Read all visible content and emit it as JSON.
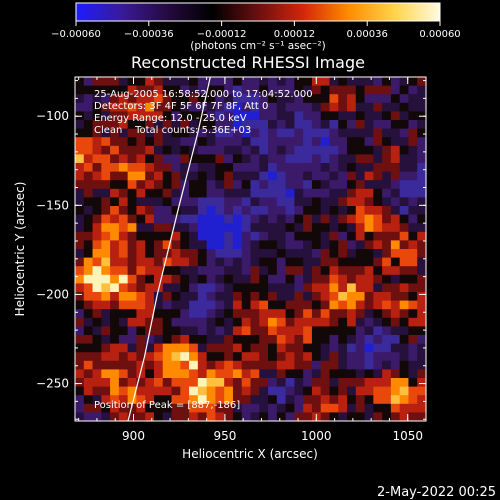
{
  "chart_data": {
    "type": "heatmap",
    "title": "Reconstructed RHESSI Image",
    "xlabel": "Heliocentric X (arcsec)",
    "ylabel": "Heliocentric Y (arcsec)",
    "xlim": [
      868,
      1060
    ],
    "ylim": [
      -271,
      -78
    ],
    "x_ticks": [
      900,
      950,
      1000,
      1050
    ],
    "x_tick_labels": [
      "900",
      "950",
      "1000",
      "1050"
    ],
    "y_ticks": [
      -100,
      -150,
      -200,
      -250
    ],
    "y_tick_labels": [
      "−100",
      "−150",
      "−200",
      "−250"
    ],
    "colorbar": {
      "range": [
        -0.0006,
        0.0006
      ],
      "ticks": [
        -0.0006,
        -0.00036,
        -0.00012,
        0.00012,
        0.00036,
        0.0006
      ],
      "tick_labels": [
        "−0.00060",
        "−0.00036",
        "−0.00012",
        "0.00012",
        "0.00036",
        "0.00060"
      ],
      "unit_label": "(photons cm⁻² s⁻¹ asec⁻²)",
      "colors": [
        "#1d1dff",
        "#3a1a9a",
        "#250a40",
        "#000000",
        "#6a0f0f",
        "#d4260a",
        "#ff8c00",
        "#ffd34a",
        "#fffbe0"
      ]
    },
    "annotations": [
      "25-Aug-2005 16:58:52.000 to 17:04:52.000",
      "Detectors: 3F 4F 5F 6F 7F 8F, Att 0",
      "Energy Range: 12.0 - 25.0 keV",
      "Clean    Total counts: 5.36E+03"
    ],
    "peak_label": "Position of Peak = [887,-186]",
    "peak_position": [
      887,
      -186
    ],
    "limb_curve": [
      [
        942,
        -78
      ],
      [
        935,
        -110
      ],
      [
        925,
        -150
      ],
      [
        913,
        -200
      ],
      [
        906,
        -235
      ],
      [
        897,
        -271
      ]
    ],
    "hot_spots": [
      {
        "x": 881,
        "y": -190,
        "v": 1.0
      },
      {
        "x": 900,
        "y": -200,
        "v": 0.55
      },
      {
        "x": 890,
        "y": -163,
        "v": 0.7
      },
      {
        "x": 873,
        "y": -122,
        "v": 0.75
      },
      {
        "x": 900,
        "y": -130,
        "v": 0.6
      },
      {
        "x": 905,
        "y": -92,
        "v": 0.6
      },
      {
        "x": 922,
        "y": -178,
        "v": 0.5
      },
      {
        "x": 925,
        "y": -236,
        "v": 0.8
      },
      {
        "x": 938,
        "y": -258,
        "v": 0.85
      },
      {
        "x": 900,
        "y": -255,
        "v": 0.6
      },
      {
        "x": 882,
        "y": -240,
        "v": 0.55
      },
      {
        "x": 958,
        "y": -245,
        "v": 0.5
      },
      {
        "x": 965,
        "y": -212,
        "v": 0.55
      },
      {
        "x": 990,
        "y": -220,
        "v": 0.55
      },
      {
        "x": 1015,
        "y": -200,
        "v": 0.8
      },
      {
        "x": 1045,
        "y": -208,
        "v": 0.6
      },
      {
        "x": 1028,
        "y": -156,
        "v": 0.65
      },
      {
        "x": 1048,
        "y": -175,
        "v": 0.55
      },
      {
        "x": 1002,
        "y": -165,
        "v": 0.5
      },
      {
        "x": 1040,
        "y": -128,
        "v": 0.5
      },
      {
        "x": 1005,
        "y": -262,
        "v": 0.55
      },
      {
        "x": 1040,
        "y": -248,
        "v": 0.6
      },
      {
        "x": 1050,
        "y": -262,
        "v": 0.5
      },
      {
        "x": 982,
        "y": -240,
        "v": 0.45
      },
      {
        "x": 1010,
        "y": -90,
        "v": 0.45
      },
      {
        "x": 960,
        "y": -140,
        "v": 0.3
      }
    ],
    "cold_spots": [
      {
        "x": 948,
        "y": -162,
        "v": 0.9
      },
      {
        "x": 975,
        "y": -140,
        "v": 0.6
      },
      {
        "x": 1035,
        "y": -232,
        "v": 0.6
      },
      {
        "x": 1000,
        "y": -112,
        "v": 0.5
      },
      {
        "x": 960,
        "y": -100,
        "v": 0.5
      },
      {
        "x": 985,
        "y": -250,
        "v": 0.45
      },
      {
        "x": 1050,
        "y": -140,
        "v": 0.5
      },
      {
        "x": 940,
        "y": -207,
        "v": 0.4
      },
      {
        "x": 1005,
        "y": -165,
        "v": 0.45
      }
    ]
  },
  "footer_date": "2-May-2022 00:25"
}
